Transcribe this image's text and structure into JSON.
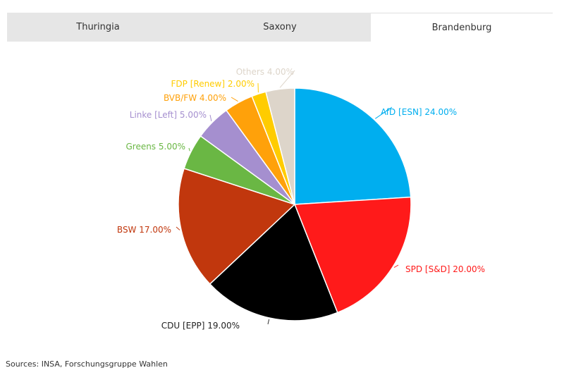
{
  "tabs": [
    {
      "label": "Thuringia",
      "active": false
    },
    {
      "label": "Saxony",
      "active": false
    },
    {
      "label": "Brandenburg",
      "active": true
    }
  ],
  "source_text": "Sources: INSA, Forschungsgruppe Wahlen",
  "chart_data": {
    "type": "pie",
    "title": "",
    "start_angle_deg": 0,
    "direction": "clockwise",
    "slices": [
      {
        "label": "AfD [ESN] 24.00%",
        "value": 24,
        "color": "#00AEEF"
      },
      {
        "label": "SPD [S&D] 20.00%",
        "value": 20,
        "color": "#FF1A1A"
      },
      {
        "label": "CDU [EPP] 19.00%",
        "value": 19,
        "color": "#000000"
      },
      {
        "label": "BSW 17.00%",
        "value": 17,
        "color": "#C1370D"
      },
      {
        "label": "Greens 5.00%",
        "value": 5,
        "color": "#6AB744"
      },
      {
        "label": "Linke [Left] 5.00%",
        "value": 5,
        "color": "#A58FCF"
      },
      {
        "label": "BVB/FW 4.00%",
        "value": 4,
        "color": "#FFA10A"
      },
      {
        "label": "FDP [Renew] 2.00%",
        "value": 2,
        "color": "#FFCC00"
      },
      {
        "label": "Others 4.00%",
        "value": 4,
        "color": "#DDD5CA"
      }
    ]
  }
}
